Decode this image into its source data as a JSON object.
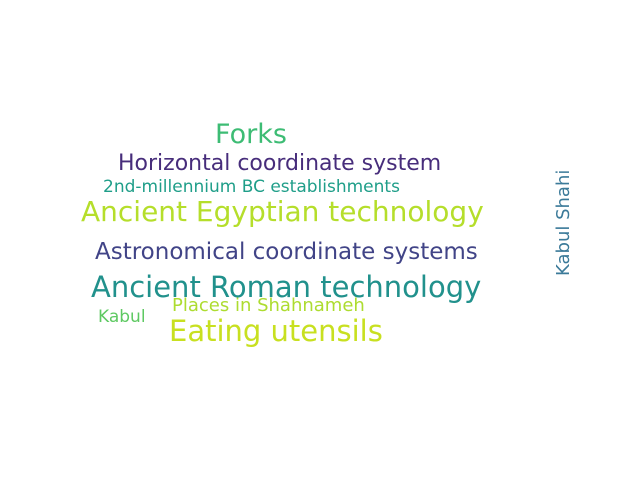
{
  "wordcloud": {
    "words": [
      {
        "text": "Forks",
        "color": "#3dbc74"
      },
      {
        "text": "Horizontal coordinate system",
        "color": "#472d7b"
      },
      {
        "text": "2nd-millennium BC establishments",
        "color": "#1f9e89"
      },
      {
        "text": "Ancient Egyptian technology",
        "color": "#b5de2b"
      },
      {
        "text": "Astronomical coordinate systems",
        "color": "#414487"
      },
      {
        "text": "Ancient Roman technology",
        "color": "#21918c"
      },
      {
        "text": "Places in Shahnameh",
        "color": "#addc30"
      },
      {
        "text": "Kabul",
        "color": "#5ec962"
      },
      {
        "text": "Eating utensils",
        "color": "#c8e020"
      },
      {
        "text": "Kabul Shahi",
        "color": "#3b7a99"
      }
    ]
  }
}
